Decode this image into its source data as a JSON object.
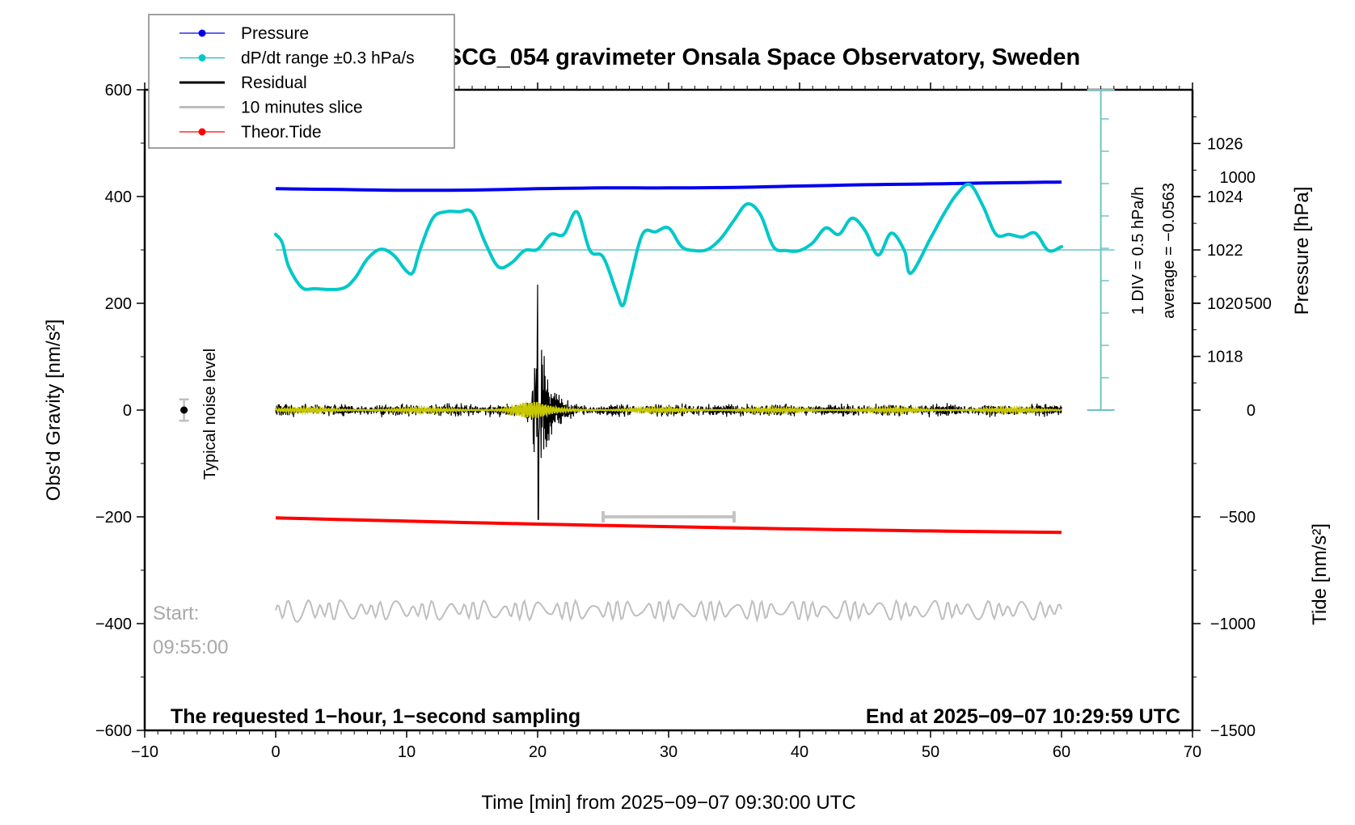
{
  "chart_data": {
    "type": "line",
    "title": "SCG_054 gravimeter Onsala Space Observatory, Sweden",
    "xlabel": "Time [min] from 2025−09−07 09:30:00 UTC",
    "ylabel_left": "Obs'd Gravity [nm/s²]",
    "ylabel_right_top": "Pressure [hPa]",
    "ylabel_right_bottom": "Tide [nm/s²]",
    "xlim": [
      -10,
      70
    ],
    "ylim_left": [
      -600,
      600
    ],
    "x_ticks": [
      -10,
      0,
      10,
      20,
      30,
      40,
      50,
      60,
      70
    ],
    "x_tick_labels": [
      "−10",
      "0",
      "10",
      "20",
      "30",
      "40",
      "50",
      "60",
      "70"
    ],
    "y_left_ticks": [
      600,
      400,
      200,
      0,
      -200,
      -400,
      -600
    ],
    "y_left_tick_labels": [
      "600",
      "400",
      "200",
      "0",
      "−200",
      "−400",
      "−600"
    ],
    "pressure_axis": {
      "ticks": [
        1026,
        1024,
        1022,
        1020,
        1018
      ],
      "tick_labels": [
        "1026",
        "1024",
        "1022",
        "1020",
        "1018"
      ]
    },
    "tide_axis": {
      "ticks": [
        1000,
        500,
        0,
        -500,
        -1000,
        -1500
      ],
      "tick_labels": [
        "1000",
        "500",
        "0",
        "−500",
        "−1000",
        "−1500"
      ]
    },
    "legend": {
      "placement": "top-left",
      "entries": [
        {
          "label": "Pressure",
          "color": "#0000ee",
          "marker": "dot"
        },
        {
          "label": "dP/dt range ±0.3 hPa/s",
          "color": "#00c8c8",
          "marker": "dot"
        },
        {
          "label": "Residual",
          "color": "#000000",
          "marker": "none"
        },
        {
          "label": "10 minutes slice",
          "color": "#bebebe",
          "marker": "none"
        },
        {
          "label": "Theor.Tide",
          "color": "#ff0000",
          "marker": "dot"
        }
      ]
    },
    "series": [
      {
        "name": "Pressure",
        "unit": "hPa",
        "color": "#0000ee",
        "x": [
          0,
          5,
          10,
          15,
          20,
          25,
          30,
          35,
          40,
          45,
          50,
          55,
          60
        ],
        "values": [
          1024.3,
          1024.27,
          1024.24,
          1024.25,
          1024.3,
          1024.33,
          1024.33,
          1024.35,
          1024.4,
          1024.45,
          1024.48,
          1024.52,
          1024.55
        ]
      },
      {
        "name": "dP/dt",
        "unit": "hPa/h (relative to reference line)",
        "color": "#00c8c8",
        "x": [
          0,
          0.5,
          1,
          2,
          3,
          5,
          6,
          7,
          8,
          9,
          10,
          10.5,
          11,
          12,
          13,
          14,
          15,
          16,
          17,
          18,
          19,
          20,
          21,
          22,
          23,
          24,
          25,
          26,
          26.5,
          27,
          28,
          29,
          30,
          31,
          32,
          33,
          34,
          35,
          36,
          37,
          38,
          39,
          40,
          41,
          42,
          43,
          44,
          45,
          46,
          47,
          48,
          48.5,
          50,
          51,
          52,
          53,
          54,
          55,
          56,
          57,
          58,
          59,
          60
        ],
        "values": [
          0.24,
          0.11,
          -0.26,
          -0.58,
          -0.6,
          -0.6,
          -0.45,
          -0.14,
          0.01,
          -0.08,
          -0.33,
          -0.34,
          -0.01,
          0.49,
          0.59,
          0.59,
          0.58,
          0.11,
          -0.26,
          -0.2,
          -0.01,
          0.01,
          0.24,
          0.24,
          0.59,
          -0.01,
          -0.11,
          -0.64,
          -0.86,
          -0.51,
          0.24,
          0.28,
          0.34,
          0.05,
          -0.01,
          0.01,
          0.18,
          0.46,
          0.71,
          0.55,
          0.05,
          -0.01,
          -0.01,
          0.11,
          0.34,
          0.24,
          0.49,
          0.3,
          -0.08,
          0.26,
          -0.01,
          -0.36,
          0.18,
          0.55,
          0.86,
          1.01,
          0.68,
          0.24,
          0.24,
          0.2,
          0.26,
          -0.01,
          0.05
        ]
      },
      {
        "name": "Residual",
        "unit": "nm/s²",
        "color": "#000000",
        "x_range": [
          0,
          60
        ],
        "background_amplitude": 12,
        "event_peak_time": 20,
        "event_max": 235,
        "event_min": -205
      },
      {
        "name": "Residual (filtered overlay)",
        "unit": "nm/s²",
        "color": "#c8c800",
        "x_range": [
          0,
          60
        ],
        "amplitude": 6
      },
      {
        "name": "10 minutes slice",
        "unit": "nm/s²",
        "color": "#bebebe",
        "x_range": [
          0,
          60
        ],
        "baseline": -375,
        "amplitude": 14
      },
      {
        "name": "Theor.Tide",
        "unit": "nm/s²",
        "color": "#ff0000",
        "x": [
          0,
          10,
          20,
          30,
          40,
          50,
          60
        ],
        "values": [
          -505,
          -520,
          -534,
          -546,
          -557,
          -566,
          -573
        ]
      }
    ],
    "annotations": {
      "noise_level_label": "Typical noise level",
      "noise_level_x": -7,
      "noise_level_range": [
        -20,
        20
      ],
      "slice_bar": {
        "x_start": 25,
        "x_end": 35,
        "y": -200
      },
      "dpdt_scale_label": "1 DIV = 0.5 hPa/h",
      "dpdt_average_label": "average = −0.0563",
      "dpdt_scale_x": 63,
      "start_label": "Start:",
      "start_time": "09:55:00",
      "bottom_left_note": "The requested 1−hour, 1−second sampling",
      "bottom_right_note": "End at 2025−09−07 10:29:59 UTC"
    },
    "grid": false
  }
}
